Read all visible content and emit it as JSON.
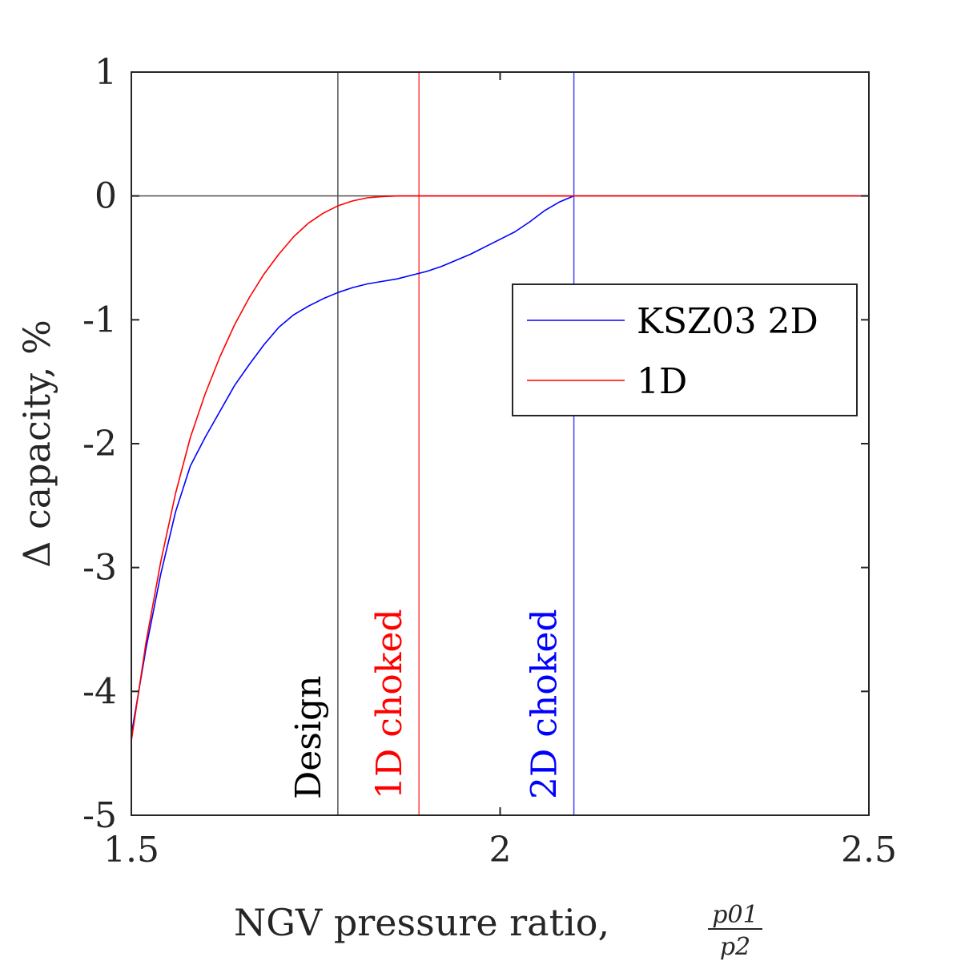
{
  "chart_data": {
    "type": "line",
    "xlabel": "NGV pressure ratio, ",
    "xlabel_fraction": {
      "numerator": "p01",
      "denominator": "p2"
    },
    "ylabel": "Δ capacity, %",
    "xlim": [
      1.5,
      2.5
    ],
    "ylim": [
      -5,
      1
    ],
    "x_ticks": [
      1.5,
      2,
      2.5
    ],
    "x_tick_labels": [
      "1.5",
      "2",
      "2.5"
    ],
    "y_ticks": [
      1,
      0,
      -1,
      -2,
      -3,
      -4,
      -5
    ],
    "y_tick_labels": [
      "1",
      "0",
      "-1",
      "-2",
      "-3",
      "-4",
      "-5"
    ],
    "grid": false,
    "legend_position": "upper-right",
    "series": [
      {
        "name": "KSZ03 2D",
        "color": "#0000ff",
        "x": [
          1.5,
          1.52,
          1.54,
          1.56,
          1.58,
          1.6,
          1.62,
          1.64,
          1.66,
          1.68,
          1.7,
          1.72,
          1.74,
          1.76,
          1.78,
          1.8,
          1.82,
          1.84,
          1.86,
          1.88,
          1.9,
          1.92,
          1.94,
          1.96,
          1.98,
          2.0,
          2.02,
          2.04,
          2.06,
          2.08,
          2.1,
          2.15,
          2.2,
          2.3,
          2.4,
          2.5
        ],
        "y": [
          -4.35,
          -3.65,
          -3.05,
          -2.55,
          -2.18,
          -1.95,
          -1.74,
          -1.53,
          -1.36,
          -1.2,
          -1.06,
          -0.96,
          -0.89,
          -0.83,
          -0.78,
          -0.74,
          -0.71,
          -0.69,
          -0.67,
          -0.64,
          -0.61,
          -0.57,
          -0.52,
          -0.47,
          -0.41,
          -0.35,
          -0.29,
          -0.21,
          -0.12,
          -0.05,
          0,
          0,
          0,
          0,
          0,
          0
        ]
      },
      {
        "name": "1D",
        "color": "#ff0000",
        "x": [
          1.5,
          1.52,
          1.54,
          1.56,
          1.58,
          1.6,
          1.62,
          1.64,
          1.66,
          1.68,
          1.7,
          1.72,
          1.74,
          1.76,
          1.78,
          1.8,
          1.82,
          1.84,
          1.86,
          1.88,
          1.89,
          1.95,
          2.0,
          2.1,
          2.2,
          2.3,
          2.4,
          2.5
        ],
        "y": [
          -4.4,
          -3.6,
          -2.95,
          -2.4,
          -1.95,
          -1.6,
          -1.3,
          -1.04,
          -0.82,
          -0.63,
          -0.47,
          -0.33,
          -0.22,
          -0.14,
          -0.08,
          -0.04,
          -0.015,
          -0.005,
          0,
          0,
          0,
          0,
          0,
          0,
          0,
          0,
          0,
          0
        ]
      }
    ],
    "reference_lines": [
      {
        "axis": "y",
        "value": 0,
        "color": "#555555"
      },
      {
        "axis": "x",
        "value": 1.78,
        "color": "#555555",
        "label": "Design",
        "label_color": "#000000"
      },
      {
        "axis": "x",
        "value": 1.89,
        "color": "#ff4444",
        "label": "1D choked",
        "label_color": "#ff0000"
      },
      {
        "axis": "x",
        "value": 2.1,
        "color": "#4444ff",
        "label": "2D choked",
        "label_color": "#0000ff"
      }
    ]
  }
}
